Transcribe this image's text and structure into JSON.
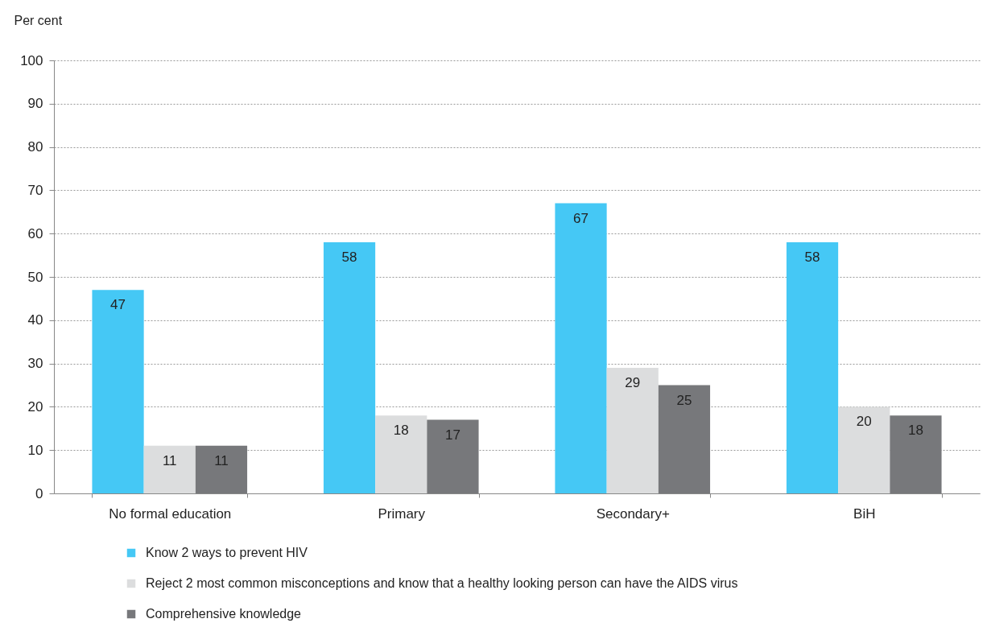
{
  "chart_data": {
    "type": "bar",
    "ylabel": "Per cent",
    "categories": [
      "No formal education",
      "Primary",
      "Secondary+",
      "BiH"
    ],
    "series": [
      {
        "name": "Know 2 ways to prevent HIV",
        "color": "#45c8f5",
        "values": [
          47,
          58,
          67,
          58
        ]
      },
      {
        "name": "Reject 2 most common misconceptions and know that a healthy looking person can have the AIDS virus",
        "color": "#dcddde",
        "values": [
          11,
          18,
          29,
          20
        ]
      },
      {
        "name": "Comprehensive knowledge",
        "color": "#77787b",
        "values": [
          11,
          17,
          25,
          18
        ]
      }
    ],
    "ylim": [
      0,
      100
    ],
    "yticks": [
      0,
      10,
      20,
      30,
      40,
      50,
      60,
      70,
      80,
      90,
      100
    ],
    "grid": "y",
    "legend": "bottom",
    "data_labels": true
  }
}
